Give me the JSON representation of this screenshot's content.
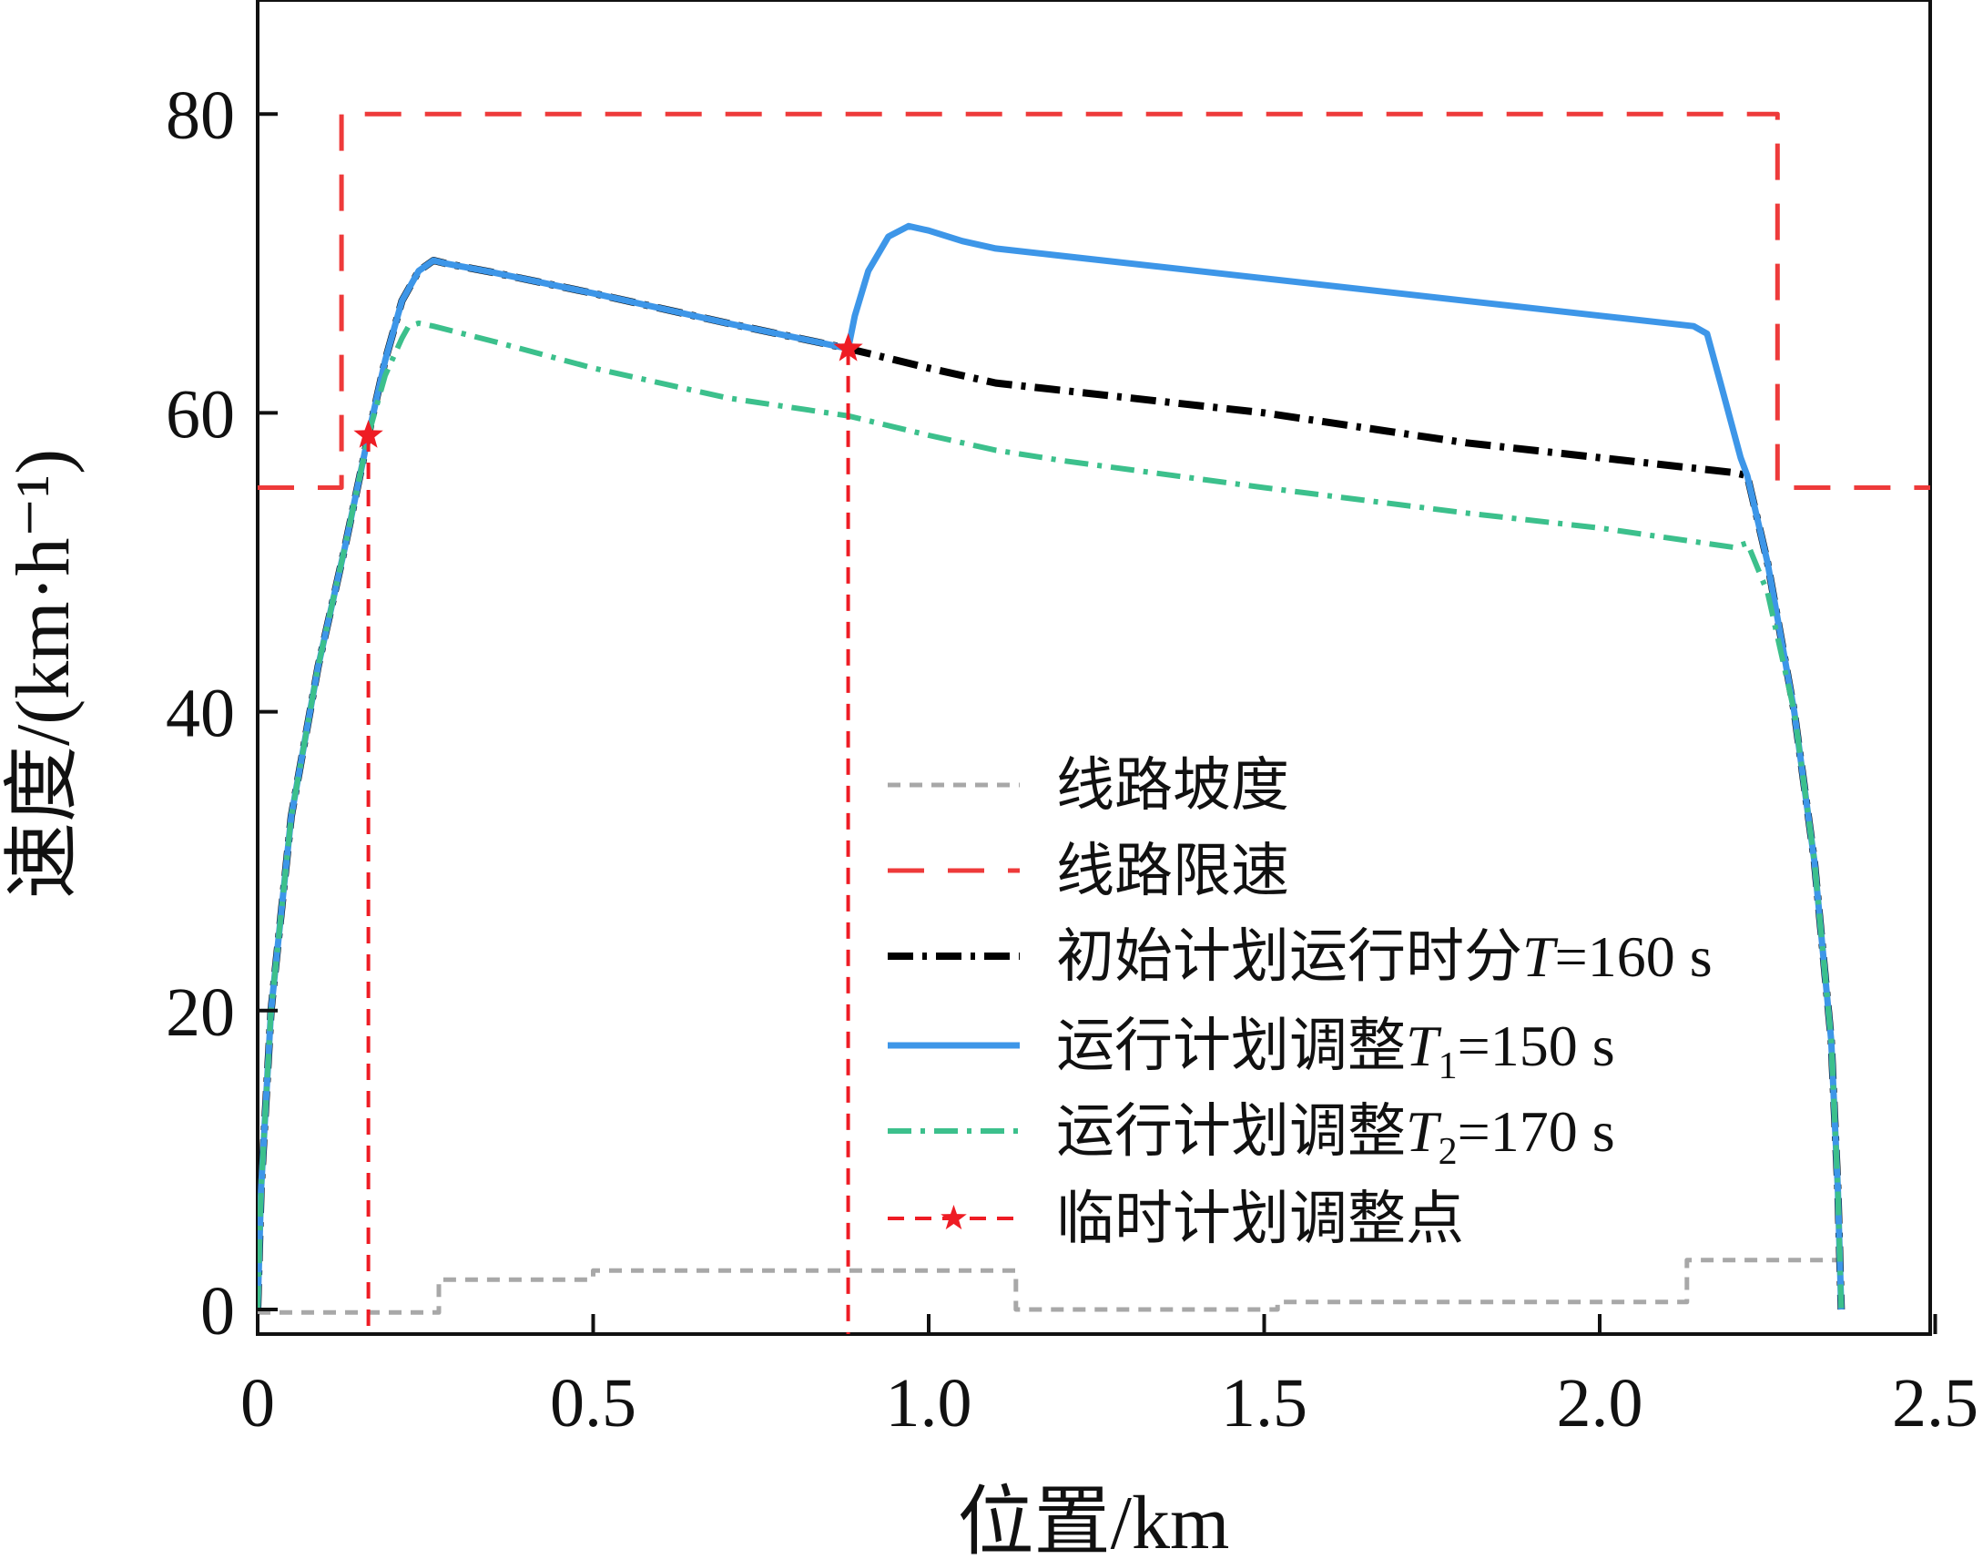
{
  "chart_data": {
    "type": "line",
    "xlabel": "位置/km",
    "ylabel": "速度/(km·h⁻¹)",
    "xlim": [
      0,
      2.5
    ],
    "ylim": [
      -2,
      88
    ],
    "xticks": [
      0,
      0.5,
      1.0,
      1.5,
      2.0,
      2.5
    ],
    "xtick_labels": [
      "0",
      "0.5",
      "1.0",
      "1.5",
      "2.0",
      "2.5"
    ],
    "yticks": [
      0,
      20,
      40,
      60,
      80
    ],
    "ytick_labels": [
      "0",
      "20",
      "40",
      "60",
      "80"
    ],
    "grid": false,
    "legend_position": "lower-right",
    "series": [
      {
        "key": "gradient",
        "name": "线路坡度",
        "color": "#a8a8a8",
        "dash": "14 10",
        "width": 5,
        "x": [
          0,
          0.27,
          0.27,
          0.5,
          0.5,
          1.13,
          1.13,
          1.52,
          1.52,
          2.13,
          2.13,
          2.36
        ],
        "y": [
          -0.2,
          -0.2,
          2.0,
          2.0,
          2.6,
          2.6,
          0.0,
          0.0,
          0.5,
          0.5,
          3.3,
          3.3
        ]
      },
      {
        "key": "speed_limit",
        "name": "线路限速",
        "color": "#ee3a3a",
        "dash": "40 26",
        "width": 5,
        "x": [
          0,
          0.125,
          0.125,
          2.265,
          2.265,
          2.5
        ],
        "y": [
          55,
          55,
          80,
          80,
          55,
          55
        ]
      },
      {
        "key": "initial_plan",
        "name": "初始计划运行时分T=160 s",
        "name_parts": [
          "初始计划运行时分",
          "T",
          "=160 s"
        ],
        "color": "#000000",
        "dash": "28 10 5 10",
        "width": 8,
        "x": [
          0,
          0.005,
          0.02,
          0.05,
          0.09,
          0.13,
          0.165,
          0.19,
          0.215,
          0.24,
          0.262,
          0.28,
          0.35,
          0.5,
          0.7,
          0.88,
          1.0,
          1.1,
          1.2,
          1.5,
          1.8,
          2.0,
          2.2,
          2.22,
          2.25,
          2.29,
          2.32,
          2.345,
          2.355,
          2.36
        ],
        "y": [
          0,
          8,
          20,
          33,
          43,
          51,
          58.5,
          63.5,
          67.5,
          69.5,
          70.2,
          70.0,
          69.4,
          68.0,
          66.0,
          64.3,
          63.0,
          62.0,
          61.5,
          60.0,
          58.0,
          57.0,
          56.0,
          55.8,
          50,
          40,
          30,
          18,
          8,
          0
        ]
      },
      {
        "key": "adjust_t1",
        "name": "运行计划调整T1=150 s",
        "name_parts": [
          "运行计划调整",
          "T",
          "1",
          "=150 s"
        ],
        "color": "#3d96e8",
        "dash": "",
        "width": 7,
        "x": [
          0,
          0.005,
          0.02,
          0.05,
          0.09,
          0.13,
          0.165,
          0.19,
          0.215,
          0.24,
          0.262,
          0.28,
          0.35,
          0.5,
          0.7,
          0.88,
          0.89,
          0.91,
          0.94,
          0.97,
          1.0,
          1.05,
          1.1,
          1.2,
          1.5,
          1.8,
          2.0,
          2.14,
          2.16,
          2.18,
          2.21,
          2.22,
          2.25,
          2.29,
          2.32,
          2.345,
          2.355,
          2.36
        ],
        "y": [
          0,
          8,
          20,
          33,
          43,
          51,
          58.5,
          63.5,
          67.5,
          69.5,
          70.2,
          70.0,
          69.4,
          68.0,
          66.0,
          64.3,
          66.5,
          69.5,
          71.8,
          72.5,
          72.2,
          71.5,
          71.0,
          70.5,
          69.0,
          67.5,
          66.5,
          65.8,
          65.3,
          62,
          57,
          55.8,
          50,
          40,
          30,
          18,
          8,
          0
        ]
      },
      {
        "key": "adjust_t2",
        "name": "运行计划调整T2=170 s",
        "name_parts": [
          "运行计划调整",
          "T",
          "2",
          "=170 s"
        ],
        "color": "#3cc08c",
        "dash": "26 10 5 10",
        "width": 6,
        "x": [
          0,
          0.005,
          0.02,
          0.05,
          0.09,
          0.13,
          0.165,
          0.19,
          0.215,
          0.225,
          0.24,
          0.262,
          0.35,
          0.5,
          0.7,
          0.88,
          1.0,
          1.1,
          1.2,
          1.5,
          1.8,
          2.0,
          2.2,
          2.22,
          2.25,
          2.29,
          2.32,
          2.345,
          2.355,
          2.36
        ],
        "y": [
          0,
          8,
          20,
          33,
          43,
          51,
          58.5,
          62.5,
          65.0,
          65.8,
          66.0,
          65.8,
          64.8,
          63.0,
          61.0,
          59.8,
          58.5,
          57.5,
          56.8,
          55.0,
          53.3,
          52.3,
          51.0,
          51.3,
          48,
          40,
          30,
          18,
          8,
          0
        ]
      }
    ],
    "adjust_points": {
      "name": "临时计划调整点",
      "color": "#ee1c24",
      "dash": "18 12",
      "x": [
        0.165,
        0.88
      ],
      "y": [
        58.5,
        64.3
      ]
    },
    "legend_order": [
      "gradient",
      "speed_limit",
      "initial_plan",
      "adjust_t1",
      "adjust_t2",
      "adjust_points"
    ]
  }
}
